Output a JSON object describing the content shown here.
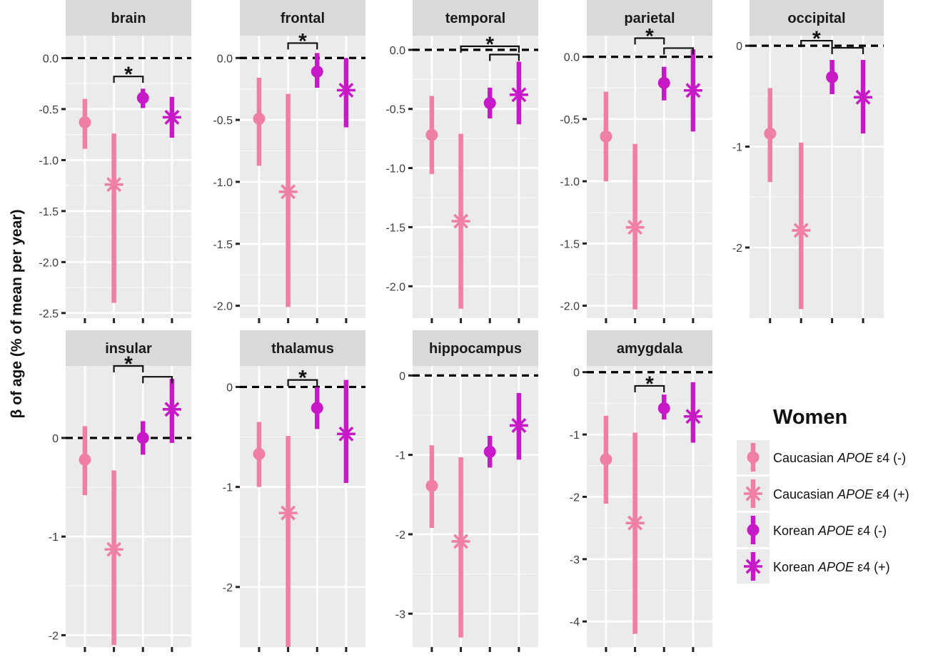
{
  "chart_data": {
    "type": "faceted-pointrange",
    "ylabel": "β of age (% of mean per year)",
    "x_categories": [
      "Caucasian APOE ε4 (-)",
      "Caucasian APOE ε4 (+)",
      "Korean APOE ε4 (-)",
      "Korean APOE ε4 (+)"
    ],
    "legend": {
      "title": "Women",
      "items": [
        {
          "prefix": "Caucasian ",
          "gene": "APOE",
          "suffix": " ε4 (-)",
          "color": "#f07fa6",
          "shape": "circle"
        },
        {
          "prefix": "Caucasian ",
          "gene": "APOE",
          "suffix": " ε4 (+)",
          "color": "#f07fa6",
          "shape": "asterisk"
        },
        {
          "prefix": "Korean ",
          "gene": "APOE",
          "suffix": " ε4 (-)",
          "color": "#c819c8",
          "shape": "circle"
        },
        {
          "prefix": "Korean ",
          "gene": "APOE",
          "suffix": " ε4 (+)",
          "color": "#c819c8",
          "shape": "asterisk"
        }
      ]
    },
    "significance_label": "*",
    "panels": [
      {
        "name": "brain",
        "ylim": [
          -2.55,
          0.22
        ],
        "ticks": [
          0.0,
          -0.5,
          -1.0,
          -1.5,
          -2.0,
          -2.5
        ],
        "tick_labels": [
          "0.0",
          "-0.5",
          "-1.0",
          "-1.5",
          "-2.0",
          "-2.5"
        ],
        "points": [
          {
            "estimate": -0.63,
            "low": -0.89,
            "high": -0.4
          },
          {
            "estimate": -1.24,
            "low": -2.4,
            "high": -0.74
          },
          {
            "estimate": -0.39,
            "low": -0.49,
            "high": -0.3
          },
          {
            "estimate": -0.58,
            "low": -0.78,
            "high": -0.38
          }
        ],
        "brackets": [
          {
            "from": 1,
            "to": 2,
            "value": -0.18,
            "star": true
          }
        ]
      },
      {
        "name": "frontal",
        "ylim": [
          -2.1,
          0.18
        ],
        "ticks": [
          0.0,
          -0.5,
          -1.0,
          -1.5,
          -2.0
        ],
        "tick_labels": [
          "0.0",
          "-0.5",
          "-1.0",
          "-1.5",
          "-2.0"
        ],
        "points": [
          {
            "estimate": -0.49,
            "low": -0.87,
            "high": -0.16
          },
          {
            "estimate": -1.08,
            "low": -2.01,
            "high": -0.29
          },
          {
            "estimate": -0.11,
            "low": -0.24,
            "high": 0.04
          },
          {
            "estimate": -0.26,
            "low": -0.56,
            "high": 0.0
          }
        ],
        "brackets": [
          {
            "from": 1,
            "to": 2,
            "value": 0.12,
            "star": true
          }
        ]
      },
      {
        "name": "temporal",
        "ylim": [
          -2.27,
          0.12
        ],
        "ticks": [
          0.0,
          -0.5,
          -1.0,
          -1.5,
          -2.0
        ],
        "tick_labels": [
          "0.0",
          "-0.5",
          "-1.0",
          "-1.5",
          "-2.0"
        ],
        "points": [
          {
            "estimate": -0.72,
            "low": -1.05,
            "high": -0.39
          },
          {
            "estimate": -1.45,
            "low": -2.19,
            "high": -0.71
          },
          {
            "estimate": -0.45,
            "low": -0.58,
            "high": -0.32
          },
          {
            "estimate": -0.38,
            "low": -0.63,
            "high": -0.1
          }
        ],
        "brackets": [
          {
            "from": 1,
            "to": 3,
            "value": 0.03,
            "star": true
          },
          {
            "from": 2,
            "to": 3,
            "value": -0.04,
            "star": false
          }
        ]
      },
      {
        "name": "parietal",
        "ylim": [
          -2.1,
          0.17
        ],
        "ticks": [
          0.0,
          -0.5,
          -1.0,
          -1.5,
          -2.0
        ],
        "tick_labels": [
          "0.0",
          "-0.5",
          "-1.0",
          "-1.5",
          "-2.0"
        ],
        "points": [
          {
            "estimate": -0.64,
            "low": -1.0,
            "high": -0.28
          },
          {
            "estimate": -1.37,
            "low": -2.03,
            "high": -0.7
          },
          {
            "estimate": -0.21,
            "low": -0.35,
            "high": -0.08
          },
          {
            "estimate": -0.27,
            "low": -0.6,
            "high": 0.06
          }
        ],
        "brackets": [
          {
            "from": 1,
            "to": 2,
            "value": 0.15,
            "star": true
          },
          {
            "from": 2,
            "to": 3,
            "value": 0.07,
            "star": false
          }
        ]
      },
      {
        "name": "occipital",
        "ylim": [
          -2.7,
          0.1
        ],
        "ticks": [
          0,
          -1,
          -2
        ],
        "tick_labels": [
          "0",
          "-1",
          "-2"
        ],
        "points": [
          {
            "estimate": -0.87,
            "low": -1.35,
            "high": -0.42
          },
          {
            "estimate": -1.83,
            "low": -2.61,
            "high": -0.96
          },
          {
            "estimate": -0.31,
            "low": -0.48,
            "high": -0.14
          },
          {
            "estimate": -0.51,
            "low": -0.87,
            "high": -0.14
          }
        ],
        "brackets": [
          {
            "from": 1,
            "to": 2,
            "value": 0.05,
            "star": true
          },
          {
            "from": 2,
            "to": 3,
            "value": -0.02,
            "star": false
          }
        ]
      },
      {
        "name": "insular",
        "ylim": [
          -2.12,
          0.73
        ],
        "ticks": [
          0,
          -1,
          -2
        ],
        "tick_labels": [
          "0",
          "-1",
          "-2"
        ],
        "points": [
          {
            "estimate": -0.22,
            "low": -0.58,
            "high": 0.12
          },
          {
            "estimate": -1.13,
            "low": -2.1,
            "high": -0.33
          },
          {
            "estimate": 0.0,
            "low": -0.17,
            "high": 0.17
          },
          {
            "estimate": 0.29,
            "low": -0.05,
            "high": 0.6
          }
        ],
        "brackets": [
          {
            "from": 1,
            "to": 2,
            "value": 0.73,
            "star": true
          },
          {
            "from": 2,
            "to": 3,
            "value": 0.62,
            "star": false
          }
        ]
      },
      {
        "name": "thalamus",
        "ylim": [
          -2.6,
          0.21
        ],
        "ticks": [
          0,
          -1,
          -2
        ],
        "tick_labels": [
          "0",
          "-1",
          "-2"
        ],
        "points": [
          {
            "estimate": -0.67,
            "low": -1.0,
            "high": -0.35
          },
          {
            "estimate": -1.26,
            "low": -2.6,
            "high": -0.49
          },
          {
            "estimate": -0.21,
            "low": -0.42,
            "high": 0.0
          },
          {
            "estimate": -0.47,
            "low": -0.96,
            "high": 0.07
          }
        ],
        "brackets": [
          {
            "from": 1,
            "to": 2,
            "value": 0.07,
            "star": true
          }
        ]
      },
      {
        "name": "hippocampus",
        "ylim": [
          -3.42,
          0.12
        ],
        "ticks": [
          0,
          -1,
          -2,
          -3
        ],
        "tick_labels": [
          "0",
          "-1",
          "-2",
          "-3"
        ],
        "points": [
          {
            "estimate": -1.39,
            "low": -1.92,
            "high": -0.88
          },
          {
            "estimate": -2.09,
            "low": -3.3,
            "high": -1.03
          },
          {
            "estimate": -0.96,
            "low": -1.16,
            "high": -0.76
          },
          {
            "estimate": -0.63,
            "low": -1.06,
            "high": -0.22
          }
        ],
        "brackets": []
      },
      {
        "name": "amygdala",
        "ylim": [
          -4.41,
          0.1
        ],
        "ticks": [
          0,
          -1,
          -2,
          -3,
          -4
        ],
        "tick_labels": [
          "0",
          "-1",
          "-2",
          "-3",
          "-4"
        ],
        "points": [
          {
            "estimate": -1.4,
            "low": -2.11,
            "high": -0.7
          },
          {
            "estimate": -2.42,
            "low": -4.2,
            "high": -0.97
          },
          {
            "estimate": -0.58,
            "low": -0.76,
            "high": -0.36
          },
          {
            "estimate": -0.71,
            "low": -1.13,
            "high": -0.16
          }
        ],
        "brackets": [
          {
            "from": 1,
            "to": 2,
            "value": -0.22,
            "star": true
          }
        ]
      }
    ]
  }
}
